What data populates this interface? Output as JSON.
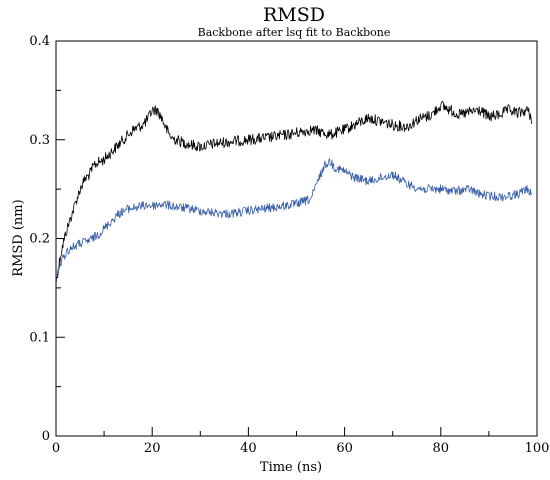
{
  "chart_data": {
    "type": "line",
    "title": "RMSD",
    "subtitle": "Backbone after lsq fit to Backbone",
    "xlabel": "Time (ns)",
    "ylabel": "RMSD (nm)",
    "xlim": [
      0,
      100
    ],
    "ylim": [
      0,
      0.4
    ],
    "x_ticks": [
      0,
      20,
      40,
      60,
      80,
      100
    ],
    "y_ticks": [
      0,
      0.1,
      0.2,
      0.3,
      0.4
    ],
    "x_tick_labels": [
      "0",
      "20",
      "40",
      "60",
      "80",
      "100"
    ],
    "y_tick_labels": [
      "0",
      "0.1",
      "0.2",
      "0.3",
      "0.4"
    ],
    "grid": false,
    "series": [
      {
        "color": "#000000",
        "x": [
          0,
          1,
          2,
          3,
          4,
          5,
          6,
          7,
          8,
          10,
          12,
          14,
          15,
          16,
          18,
          19,
          20,
          21,
          22,
          23,
          24,
          26,
          28,
          30,
          33,
          36,
          40,
          44,
          48,
          50,
          53,
          55,
          57,
          60,
          62,
          65,
          68,
          70,
          73,
          75,
          78,
          80,
          82,
          84,
          86,
          88,
          90,
          92,
          94,
          96,
          98,
          99
        ],
        "y": [
          0.155,
          0.185,
          0.205,
          0.22,
          0.235,
          0.25,
          0.26,
          0.265,
          0.275,
          0.28,
          0.29,
          0.3,
          0.305,
          0.31,
          0.315,
          0.32,
          0.33,
          0.33,
          0.322,
          0.31,
          0.302,
          0.298,
          0.295,
          0.293,
          0.296,
          0.298,
          0.3,
          0.302,
          0.305,
          0.307,
          0.31,
          0.308,
          0.305,
          0.31,
          0.315,
          0.322,
          0.318,
          0.315,
          0.313,
          0.32,
          0.325,
          0.335,
          0.33,
          0.325,
          0.328,
          0.33,
          0.323,
          0.325,
          0.33,
          0.327,
          0.33,
          0.32
        ]
      },
      {
        "color": "#3a5fa8",
        "x": [
          0,
          1,
          2,
          3,
          5,
          7,
          9,
          11,
          13,
          15,
          17,
          19,
          20,
          22,
          25,
          28,
          30,
          33,
          36,
          40,
          43,
          46,
          50,
          53,
          55,
          56,
          57,
          58,
          60,
          62,
          65,
          68,
          70,
          73,
          76,
          80,
          83,
          86,
          88,
          90,
          93,
          96,
          98,
          99
        ],
        "y": [
          0.16,
          0.175,
          0.185,
          0.19,
          0.195,
          0.198,
          0.205,
          0.215,
          0.225,
          0.23,
          0.232,
          0.234,
          0.233,
          0.235,
          0.232,
          0.23,
          0.228,
          0.226,
          0.225,
          0.228,
          0.23,
          0.232,
          0.235,
          0.24,
          0.265,
          0.275,
          0.278,
          0.272,
          0.268,
          0.262,
          0.258,
          0.262,
          0.265,
          0.255,
          0.25,
          0.25,
          0.248,
          0.25,
          0.245,
          0.243,
          0.242,
          0.245,
          0.25,
          0.245
        ]
      }
    ]
  }
}
